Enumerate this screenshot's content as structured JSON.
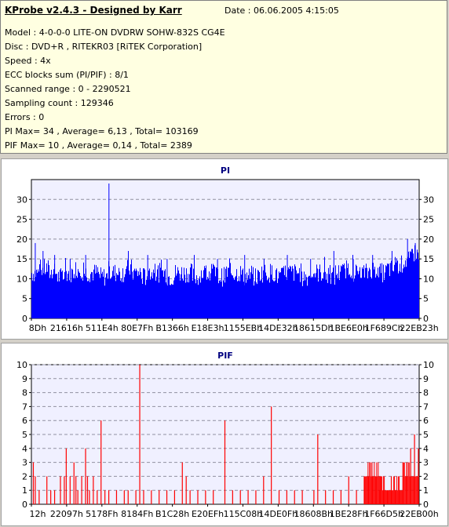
{
  "header": {
    "title": "KProbe v2.4.3 - Designed by Karr",
    "date": "Date : 06.06.2005 4:15:05",
    "lines": [
      "Model : 4-0-0-0 LITE-ON DVDRW SOHW-832S  CG4E",
      "Disc : DVD+R , RITEKR03 [RiTEK Corporation]",
      "Speed : 4x",
      "ECC blocks sum (PI/PIF) : 8/1",
      "Scanned range : 0 - 2290521",
      "Sampling count : 129346",
      "Errors : 0",
      "PI Max= 34 , Average= 6,13 , Total= 103169",
      "PIF Max= 10 , Average= 0,14 , Total= 2389"
    ]
  },
  "colors": {
    "pi": "#0000ff",
    "pif": "#ff0000",
    "plot_bg": "#f0f0ff"
  },
  "chart_data": [
    {
      "type": "bar",
      "title": "PI",
      "ylim": [
        0,
        35
      ],
      "yticks": [
        0,
        5,
        10,
        15,
        20,
        25,
        30
      ],
      "xticks": [
        "8Dh",
        "21616h",
        "511E4h",
        "80E7Fh",
        "B1366h",
        "E18E3h",
        "1155EBh",
        "14DE32h",
        "18615Dh",
        "1BE6E0h",
        "1F689Ch",
        "22EB23h"
      ],
      "grid": true,
      "series": [
        {
          "baseline": [
            11,
            12,
            11,
            10,
            11,
            12,
            11,
            11,
            10,
            11,
            11,
            12,
            11,
            10,
            11,
            11,
            10,
            11,
            11,
            10,
            11,
            11,
            10,
            11,
            11,
            10,
            10,
            11,
            11,
            10,
            11,
            11,
            10,
            11,
            11,
            10,
            11,
            12,
            11,
            11,
            12,
            11,
            12,
            13,
            14,
            16
          ],
          "peaks": [
            [
              0.01,
              19
            ],
            [
              0.03,
              17
            ],
            [
              0.06,
              16
            ],
            [
              0.1,
              15
            ],
            [
              0.14,
              16
            ],
            [
              0.2,
              34
            ],
            [
              0.25,
              17
            ],
            [
              0.3,
              16
            ],
            [
              0.35,
              15
            ],
            [
              0.42,
              16
            ],
            [
              0.48,
              15
            ],
            [
              0.55,
              16
            ],
            [
              0.6,
              15
            ],
            [
              0.66,
              16
            ],
            [
              0.72,
              15
            ],
            [
              0.78,
              17
            ],
            [
              0.83,
              15
            ],
            [
              0.88,
              16
            ],
            [
              0.93,
              17
            ],
            [
              0.97,
              20
            ],
            [
              0.99,
              19
            ]
          ]
        }
      ]
    },
    {
      "type": "bar",
      "title": "PIF",
      "ylim": [
        0,
        10
      ],
      "yticks": [
        0,
        1,
        2,
        3,
        4,
        5,
        6,
        7,
        8,
        9,
        10
      ],
      "xticks": [
        "12h",
        "22097h",
        "5178Fh",
        "8184Fh",
        "B1C28h",
        "E20EFh",
        "115C08h",
        "14DE0Fh",
        "18608Bh",
        "1BE28Fh",
        "1F66D5h",
        "22EB00h"
      ],
      "grid": true,
      "series": [
        {
          "spikes": [
            [
              0.005,
              3
            ],
            [
              0.01,
              2
            ],
            [
              0.02,
              1
            ],
            [
              0.04,
              2
            ],
            [
              0.05,
              1
            ],
            [
              0.06,
              1
            ],
            [
              0.075,
              2
            ],
            [
              0.085,
              2
            ],
            [
              0.09,
              4
            ],
            [
              0.1,
              2
            ],
            [
              0.11,
              3
            ],
            [
              0.115,
              2
            ],
            [
              0.12,
              1
            ],
            [
              0.13,
              2
            ],
            [
              0.14,
              4
            ],
            [
              0.145,
              2
            ],
            [
              0.15,
              1
            ],
            [
              0.16,
              2
            ],
            [
              0.17,
              1
            ],
            [
              0.18,
              6
            ],
            [
              0.19,
              1
            ],
            [
              0.2,
              1
            ],
            [
              0.22,
              1
            ],
            [
              0.24,
              1
            ],
            [
              0.25,
              1
            ],
            [
              0.27,
              1
            ],
            [
              0.28,
              10
            ],
            [
              0.29,
              1
            ],
            [
              0.31,
              1
            ],
            [
              0.33,
              1
            ],
            [
              0.35,
              1
            ],
            [
              0.37,
              1
            ],
            [
              0.39,
              3
            ],
            [
              0.4,
              2
            ],
            [
              0.41,
              1
            ],
            [
              0.43,
              1
            ],
            [
              0.45,
              1
            ],
            [
              0.47,
              1
            ],
            [
              0.5,
              6
            ],
            [
              0.52,
              1
            ],
            [
              0.54,
              1
            ],
            [
              0.56,
              1
            ],
            [
              0.58,
              1
            ],
            [
              0.6,
              2
            ],
            [
              0.62,
              7
            ],
            [
              0.64,
              1
            ],
            [
              0.66,
              1
            ],
            [
              0.68,
              1
            ],
            [
              0.7,
              1
            ],
            [
              0.73,
              1
            ],
            [
              0.74,
              5
            ],
            [
              0.76,
              1
            ],
            [
              0.78,
              1
            ],
            [
              0.8,
              1
            ],
            [
              0.82,
              2
            ],
            [
              0.84,
              1
            ],
            [
              0.86,
              2
            ],
            [
              0.87,
              2
            ],
            [
              0.88,
              3
            ],
            [
              0.89,
              2
            ],
            [
              0.9,
              1
            ],
            [
              0.91,
              1
            ],
            [
              0.92,
              1
            ],
            [
              0.93,
              2
            ],
            [
              0.94,
              1
            ],
            [
              0.95,
              2
            ],
            [
              0.96,
              3
            ],
            [
              0.97,
              3
            ],
            [
              0.98,
              4
            ],
            [
              0.99,
              5
            ],
            [
              1.0,
              4
            ]
          ],
          "dense": [
            [
              0.86,
              0.9,
              2
            ],
            [
              0.9,
              0.96,
              1
            ],
            [
              0.96,
              1.0,
              2
            ]
          ]
        }
      ]
    }
  ]
}
